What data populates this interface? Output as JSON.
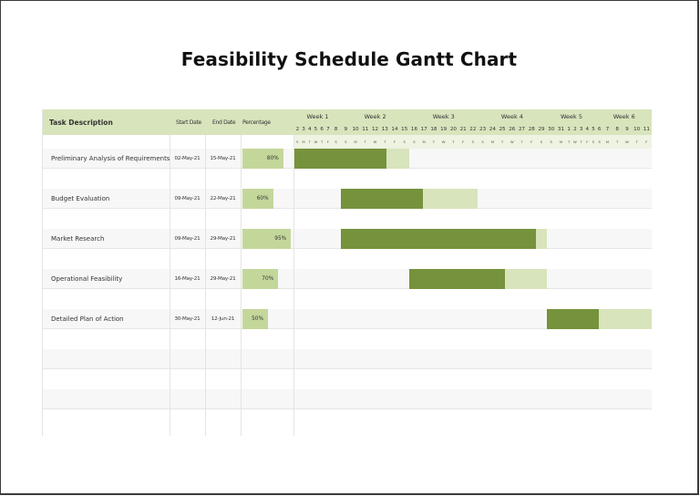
{
  "title": "Feasibility Schedule Gantt Chart",
  "columns": {
    "task": "Task Description",
    "start": "Start Date",
    "end": "End Date",
    "percentage": "Percentage"
  },
  "weeks": [
    "Week 1",
    "Week 2",
    "Week 3",
    "Week 4",
    "Week 5",
    "Week 6"
  ],
  "days": [
    "2",
    "3",
    "4",
    "5",
    "6",
    "7",
    "8",
    "9",
    "10",
    "11",
    "12",
    "13",
    "14",
    "15",
    "16",
    "17",
    "18",
    "19",
    "20",
    "21",
    "22",
    "23",
    "24",
    "25",
    "26",
    "27",
    "28",
    "29",
    "30",
    "31",
    "1",
    "2",
    "3",
    "4",
    "5",
    "6",
    "7",
    "8",
    "9",
    "10",
    "11"
  ],
  "day_letters": [
    "S",
    "M",
    "T",
    "W",
    "T",
    "F",
    "S",
    "S",
    "M",
    "T",
    "W",
    "T",
    "F",
    "S",
    "S",
    "M",
    "T",
    "W",
    "T",
    "F",
    "S",
    "S",
    "M",
    "T",
    "W",
    "T",
    "F",
    "S",
    "S",
    "M",
    "T",
    "W",
    "T",
    "F",
    "S",
    "S",
    "M",
    "T",
    "W",
    "T",
    "F"
  ],
  "colors": {
    "header_bg": "#d8e4bc",
    "progress_done": "#76923c",
    "progress_remaining": "#d8e4bc",
    "percentage_fill": "#c4d79b"
  },
  "tasks": [
    {
      "name": "Preliminary Analysis of Requirements",
      "start": "02-May-21",
      "end": "15-May-21",
      "percentage": "80%"
    },
    {
      "name": "Budget Evaluation",
      "start": "09-May-21",
      "end": "22-May-21",
      "percentage": "60%"
    },
    {
      "name": "Market Research",
      "start": "09-May-21",
      "end": "29-May-21",
      "percentage": "95%"
    },
    {
      "name": "Operational Feasibility",
      "start": "16-May-21",
      "end": "29-May-21",
      "percentage": "70%"
    },
    {
      "name": "Detailed Plan of Action",
      "start": "30-May-21",
      "end": "12-Jun-21",
      "percentage": "50%"
    }
  ],
  "chart_data": {
    "type": "bar",
    "subtype": "gantt",
    "title": "Feasibility Schedule Gantt Chart",
    "x_axis": {
      "start": "2021-05-02",
      "end": "2021-06-11",
      "groups": [
        "Week 1",
        "Week 2",
        "Week 3",
        "Week 4",
        "Week 5",
        "Week 6"
      ]
    },
    "categories": [
      "Preliminary Analysis of Requirements",
      "Budget Evaluation",
      "Market Research",
      "Operational Feasibility",
      "Detailed Plan of Action"
    ],
    "series": [
      {
        "name": "Start",
        "values": [
          "2021-05-02",
          "2021-05-09",
          "2021-05-09",
          "2021-05-16",
          "2021-05-30"
        ]
      },
      {
        "name": "End",
        "values": [
          "2021-05-15",
          "2021-05-22",
          "2021-05-29",
          "2021-05-29",
          "2021-06-12"
        ]
      },
      {
        "name": "Percent Complete",
        "values": [
          80,
          60,
          95,
          70,
          50
        ]
      }
    ],
    "legend": "none",
    "grid": true
  }
}
